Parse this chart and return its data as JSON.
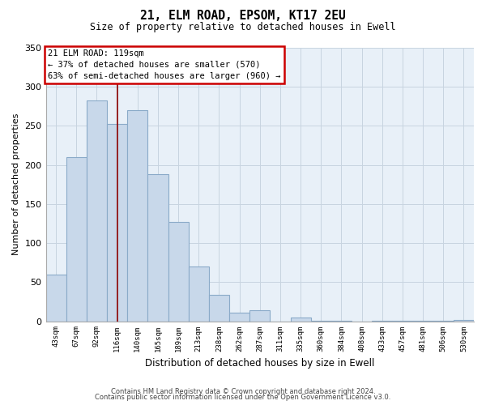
{
  "title1": "21, ELM ROAD, EPSOM, KT17 2EU",
  "title2": "Size of property relative to detached houses in Ewell",
  "xlabel": "Distribution of detached houses by size in Ewell",
  "ylabel": "Number of detached properties",
  "bar_color": "#c8d8ea",
  "bar_edge_color": "#8aaac8",
  "plot_bg_color": "#e8f0f8",
  "categories": [
    "43sqm",
    "67sqm",
    "92sqm",
    "116sqm",
    "140sqm",
    "165sqm",
    "189sqm",
    "213sqm",
    "238sqm",
    "262sqm",
    "287sqm",
    "311sqm",
    "335sqm",
    "360sqm",
    "384sqm",
    "408sqm",
    "433sqm",
    "457sqm",
    "481sqm",
    "506sqm",
    "530sqm"
  ],
  "values": [
    60,
    210,
    283,
    253,
    270,
    188,
    127,
    70,
    34,
    11,
    14,
    0,
    5,
    1,
    1,
    0,
    1,
    1,
    1,
    1,
    2
  ],
  "ylim": [
    0,
    350
  ],
  "yticks": [
    0,
    50,
    100,
    150,
    200,
    250,
    300,
    350
  ],
  "annotation_title": "21 ELM ROAD: 119sqm",
  "annotation_line1": "← 37% of detached houses are smaller (570)",
  "annotation_line2": "63% of semi-detached houses are larger (960) →",
  "highlight_bar_index": 3,
  "vline_color": "#8b0000",
  "footnote1": "Contains HM Land Registry data © Crown copyright and database right 2024.",
  "footnote2": "Contains public sector information licensed under the Open Government Licence v3.0.",
  "background_color": "#ffffff",
  "grid_color": "#c8d4e0",
  "ann_box_color": "#cc0000"
}
